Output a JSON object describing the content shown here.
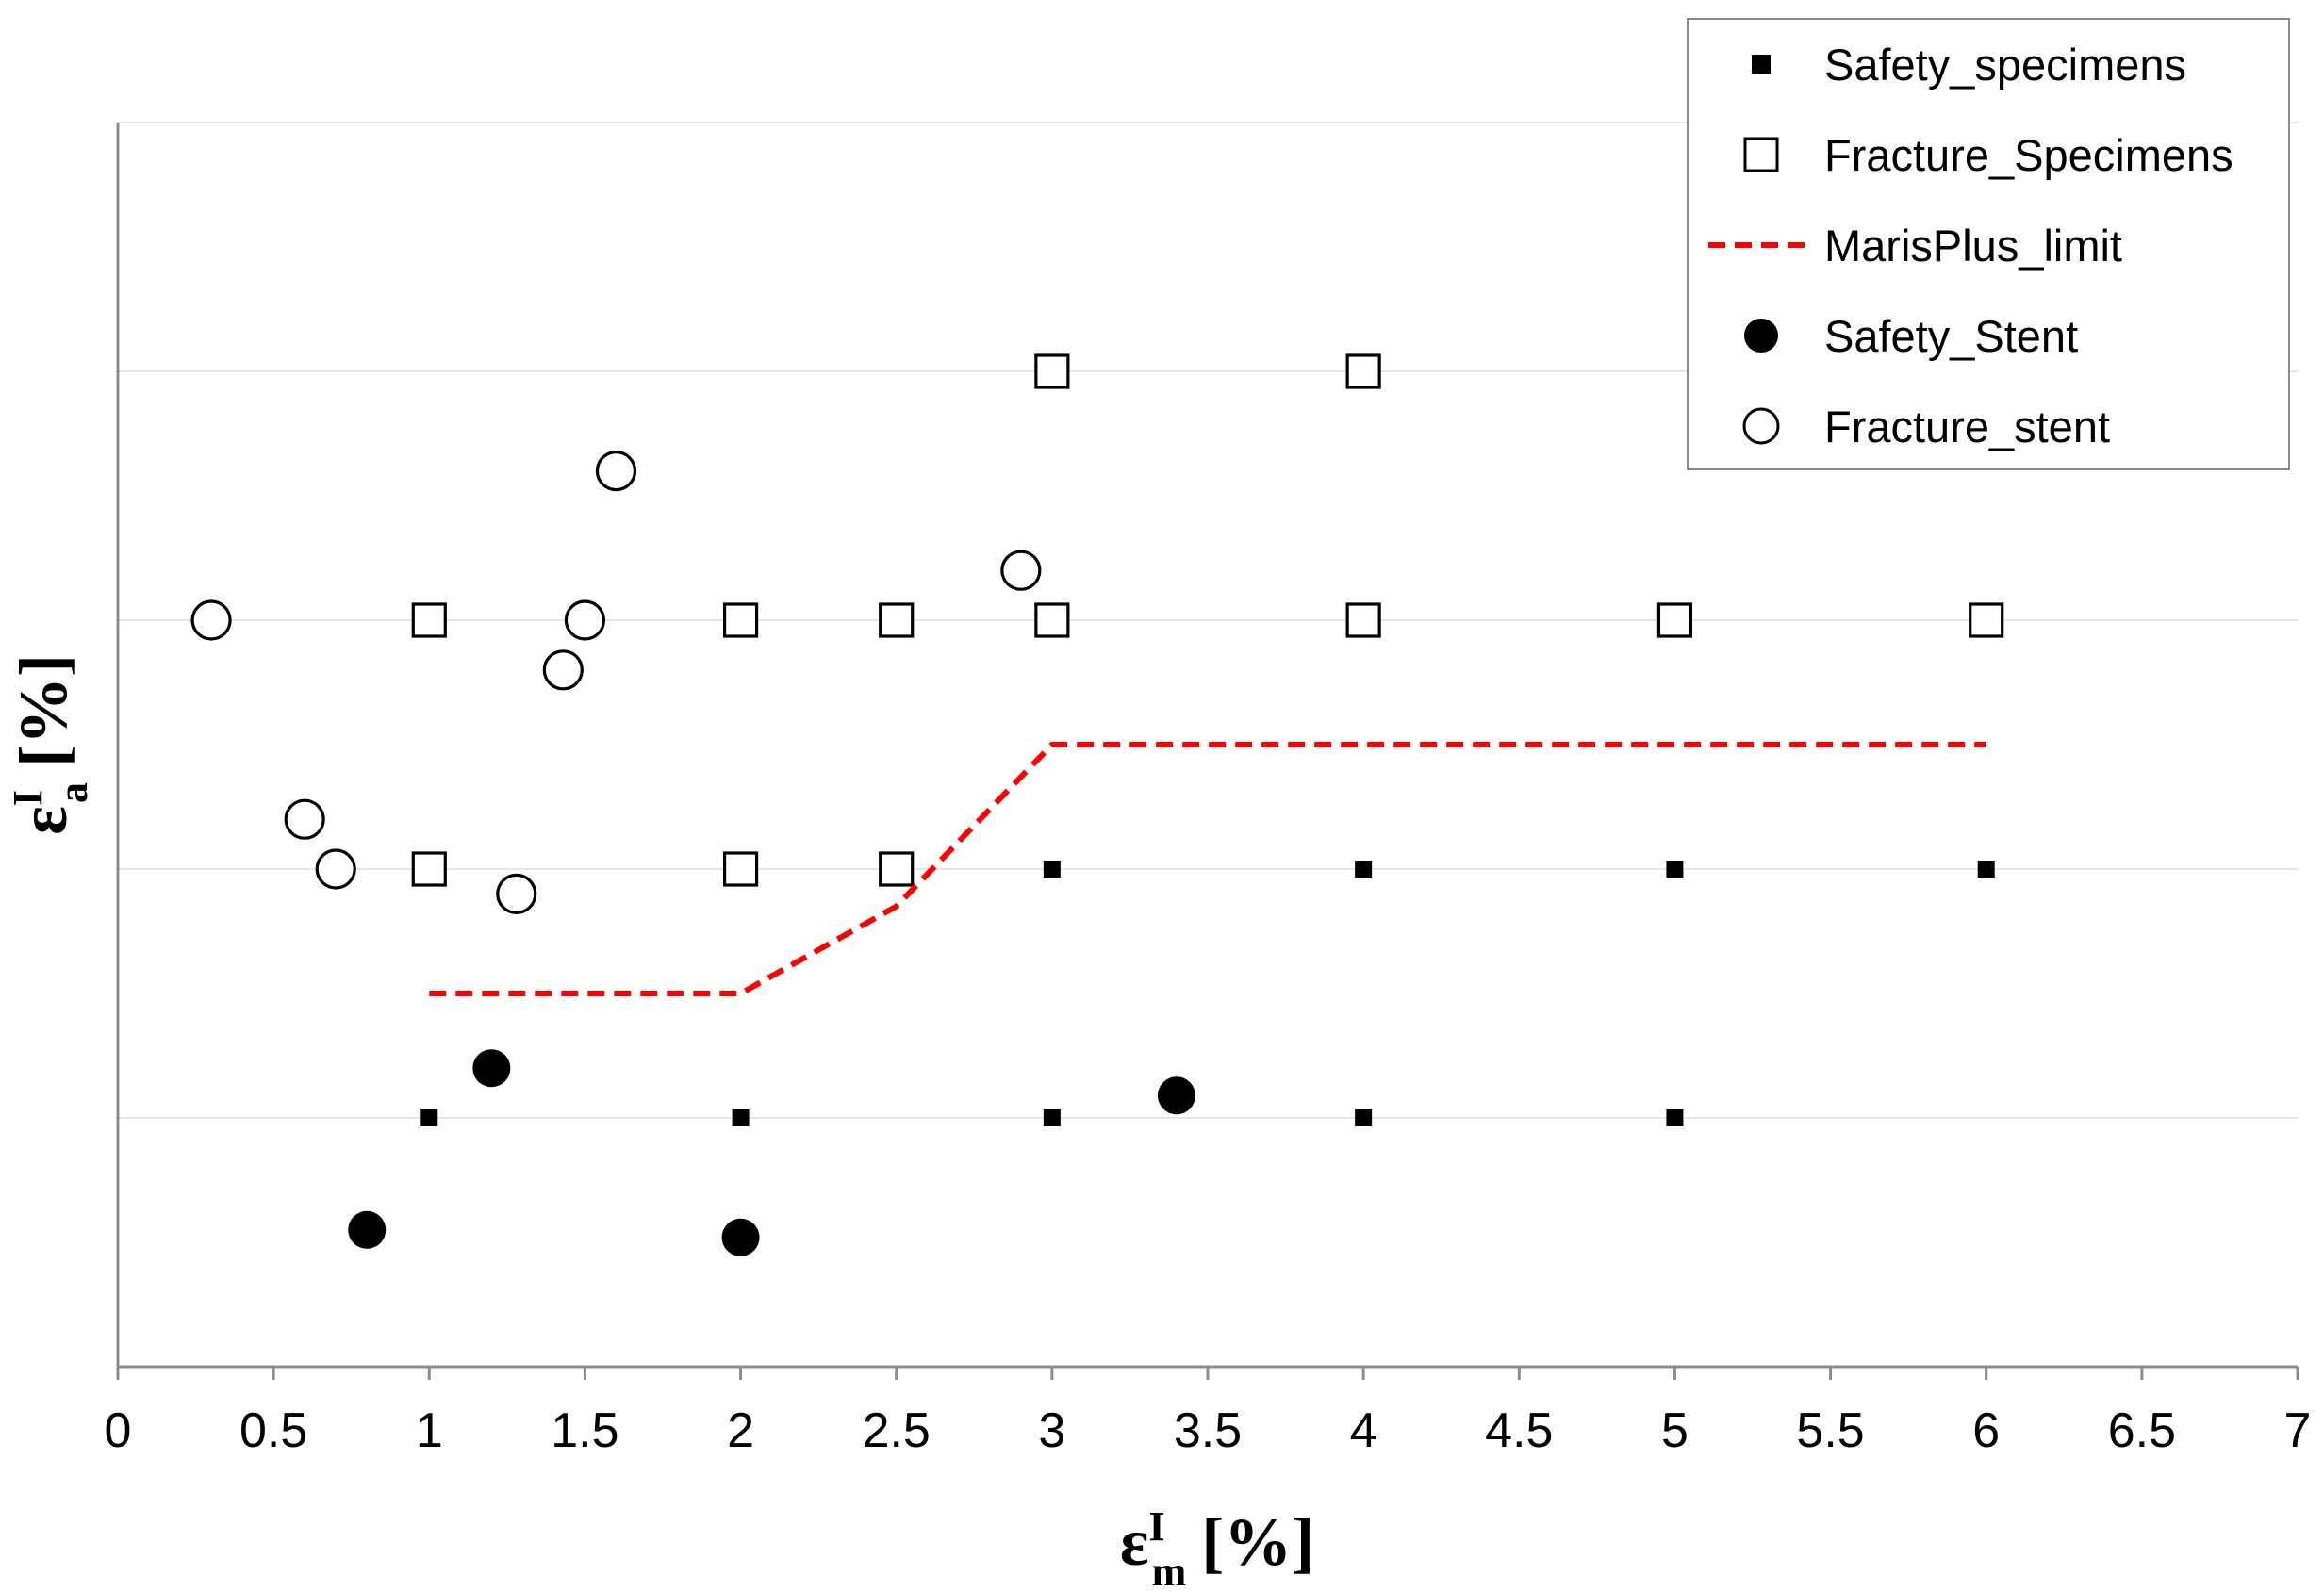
{
  "chart_data": {
    "type": "scatter",
    "title": "",
    "xlabel": {
      "symbol": "ε",
      "superscript": "I",
      "subscript": "m",
      "unit": "[%]"
    },
    "ylabel": {
      "symbol": "ε",
      "superscript": "I",
      "subscript": "a",
      "unit": "[%]"
    },
    "xlim": [
      0,
      7
    ],
    "ylim": [
      0,
      5
    ],
    "x_ticks": [
      "0",
      "0.5",
      "1",
      "1.5",
      "2",
      "2.5",
      "3",
      "3.5",
      "4",
      "4.5",
      "5",
      "5.5",
      "6",
      "6.5",
      "7"
    ],
    "y_ticks_shown": false,
    "horizontal_gridlines_at": [
      1,
      2,
      3,
      4,
      5
    ],
    "legend_position": "top-right",
    "series": [
      {
        "name": "Safety_specimens",
        "marker": "filled-small-square",
        "color": "#000000",
        "points": [
          [
            1,
            1
          ],
          [
            2,
            1
          ],
          [
            3,
            1
          ],
          [
            4,
            1
          ],
          [
            5,
            1
          ],
          [
            3,
            2
          ],
          [
            4,
            2
          ],
          [
            5,
            2
          ],
          [
            6,
            2
          ]
        ]
      },
      {
        "name": "Fracture_Specimens",
        "marker": "open-square",
        "color": "#000000",
        "points": [
          [
            1,
            2
          ],
          [
            2,
            2
          ],
          [
            2.5,
            2
          ],
          [
            1,
            3
          ],
          [
            2,
            3
          ],
          [
            2.5,
            3
          ],
          [
            3,
            3
          ],
          [
            4,
            3
          ],
          [
            5,
            3
          ],
          [
            6,
            3
          ],
          [
            3,
            4
          ],
          [
            4,
            4
          ]
        ]
      },
      {
        "name": "MarisPlus_limit",
        "marker": "dashed-line",
        "color": "#ff0000",
        "points": [
          [
            1,
            1.5
          ],
          [
            2,
            1.5
          ],
          [
            2.5,
            1.85
          ],
          [
            3,
            2.5
          ],
          [
            6,
            2.5
          ]
        ]
      },
      {
        "name": "Safety_Stent",
        "marker": "filled-circle",
        "color": "#000000",
        "points": [
          [
            0.8,
            0.55
          ],
          [
            1.2,
            1.2
          ],
          [
            2,
            0.52
          ],
          [
            3.4,
            1.09
          ]
        ]
      },
      {
        "name": "Fracture_stent",
        "marker": "open-circle",
        "color": "#000000",
        "points": [
          [
            0.3,
            3
          ],
          [
            0.6,
            2.2
          ],
          [
            0.7,
            2
          ],
          [
            1.28,
            1.9
          ],
          [
            1.43,
            2.8
          ],
          [
            1.5,
            3
          ],
          [
            1.6,
            3.6
          ],
          [
            2.9,
            3.2
          ]
        ]
      }
    ]
  }
}
